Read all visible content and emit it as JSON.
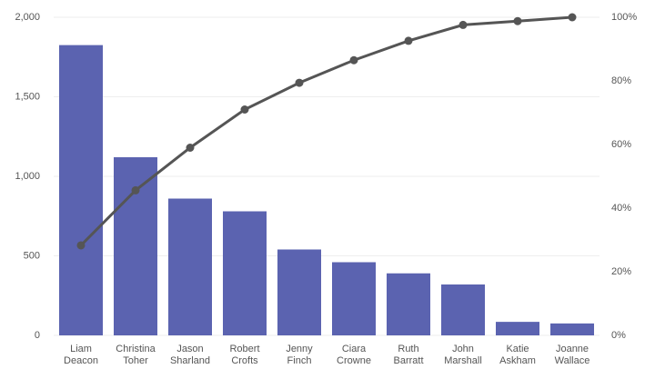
{
  "chart_data": {
    "type": "pareto",
    "categories": [
      "Liam Deacon",
      "Christina Toher",
      "Jason Sharland",
      "Robert Crofts",
      "Jenny Finch",
      "Ciara Crowne",
      "Ruth Barratt",
      "John Marshall",
      "Katie Askham",
      "Joanne Wallace"
    ],
    "series": [
      {
        "type": "bar",
        "color": "#5b63b0",
        "values": [
          1825,
          1120,
          860,
          780,
          540,
          460,
          390,
          320,
          85,
          75
        ]
      },
      {
        "type": "line",
        "color": "#555555",
        "axis": "y2",
        "values": [
          28.3,
          45.6,
          59.0,
          71.0,
          79.4,
          86.5,
          92.6,
          97.6,
          98.8,
          100
        ]
      }
    ],
    "ylim": [
      0,
      2000
    ],
    "yticks": [
      0,
      500,
      {
        "value": 1000,
        "label": "1,000"
      },
      {
        "value": 1500,
        "label": "1,500"
      },
      {
        "value": 2000,
        "label": "2,000"
      }
    ],
    "y2lim": [
      0,
      100
    ],
    "y2ticks": [
      {
        "value": 0,
        "label": "0%"
      },
      {
        "value": 20,
        "label": "20%"
      },
      {
        "value": 40,
        "label": "40%"
      },
      {
        "value": 60,
        "label": "60%"
      },
      {
        "value": 80,
        "label": "80%"
      },
      {
        "value": 100,
        "label": "100%"
      }
    ],
    "grid": true
  }
}
